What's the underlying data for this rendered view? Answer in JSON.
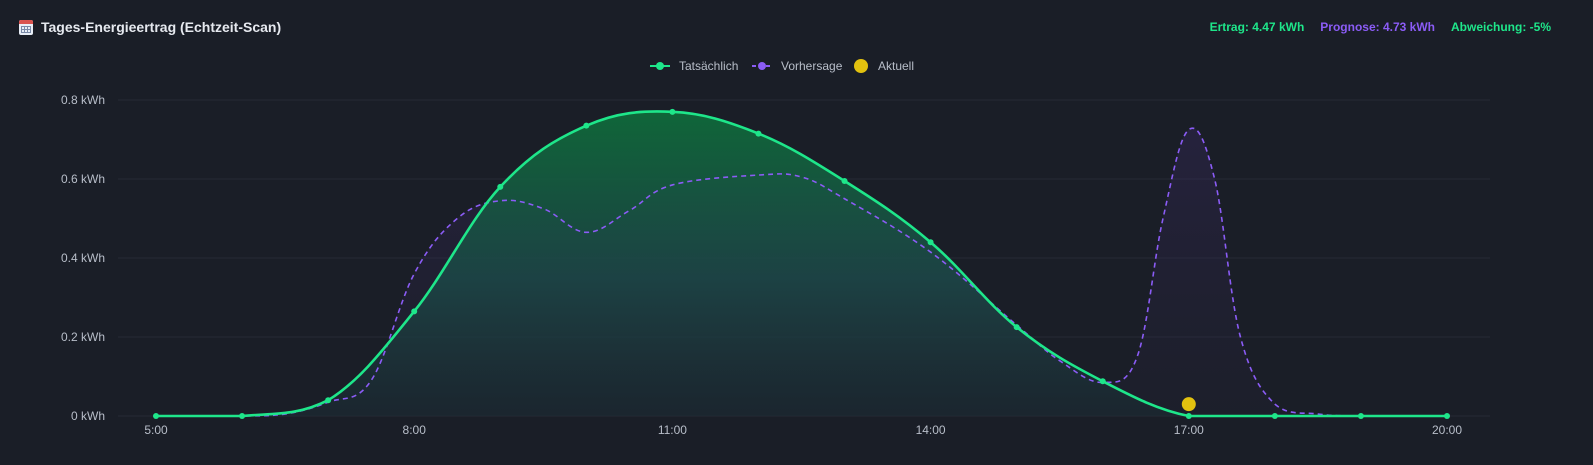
{
  "header": {
    "title": "Tages-Energieertrag (Echtzeit-Scan)",
    "icon": "calendar-icon",
    "stats": {
      "ertrag": "Ertrag: 4.47 kWh",
      "prognose": "Prognose: 4.73 kWh",
      "abweichung": "Abweichung: -5%"
    }
  },
  "colors": {
    "background": "#1a1e27",
    "actual": "#1ee68a",
    "forecast": "#8b5cf6",
    "current": "#e2c10f",
    "grid": "#262b36",
    "text": "#b8bec9"
  },
  "chart_data": {
    "type": "line",
    "legend": [
      "Tatsächlich",
      "Vorhersage",
      "Aktuell"
    ],
    "legend_position": "top-center",
    "x_ticks": [
      "5:00",
      "8:00",
      "11:00",
      "14:00",
      "17:00",
      "20:00"
    ],
    "y_ticks": [
      "0 kWh",
      "0.2 kWh",
      "0.4 kWh",
      "0.6 kWh",
      "0.8 kWh"
    ],
    "xlim": [
      5,
      20
    ],
    "ylim": [
      0,
      0.8
    ],
    "grid": true,
    "series": [
      {
        "name": "Tatsächlich",
        "style": "solid",
        "points": [
          [
            5,
            0
          ],
          [
            6,
            0
          ],
          [
            7,
            0.04
          ],
          [
            8,
            0.265
          ],
          [
            9,
            0.58
          ],
          [
            10,
            0.735
          ],
          [
            11,
            0.77
          ],
          [
            12,
            0.715
          ],
          [
            13,
            0.595
          ],
          [
            14,
            0.44
          ],
          [
            15,
            0.225
          ],
          [
            16,
            0.088
          ],
          [
            17,
            0
          ],
          [
            18,
            0
          ],
          [
            19,
            0
          ],
          [
            20,
            0
          ]
        ]
      },
      {
        "name": "Vorhersage",
        "style": "dashed",
        "points": [
          [
            5,
            0
          ],
          [
            6,
            0
          ],
          [
            6.5,
            0.005
          ],
          [
            7,
            0.035
          ],
          [
            7.5,
            0.09
          ],
          [
            8,
            0.36
          ],
          [
            8.5,
            0.5
          ],
          [
            9,
            0.545
          ],
          [
            9.5,
            0.525
          ],
          [
            10,
            0.465
          ],
          [
            10.5,
            0.52
          ],
          [
            11,
            0.585
          ],
          [
            12,
            0.61
          ],
          [
            12.5,
            0.605
          ],
          [
            13,
            0.55
          ],
          [
            14,
            0.415
          ],
          [
            15,
            0.23
          ],
          [
            15.5,
            0.14
          ],
          [
            16,
            0.085
          ],
          [
            16.4,
            0.15
          ],
          [
            16.7,
            0.5
          ],
          [
            17,
            0.725
          ],
          [
            17.3,
            0.6
          ],
          [
            17.6,
            0.2
          ],
          [
            18,
            0.03
          ],
          [
            18.5,
            0.005
          ],
          [
            19,
            0
          ],
          [
            20,
            0
          ]
        ]
      },
      {
        "name": "Aktuell",
        "style": "point",
        "points": [
          [
            17,
            0.03
          ]
        ]
      }
    ]
  }
}
